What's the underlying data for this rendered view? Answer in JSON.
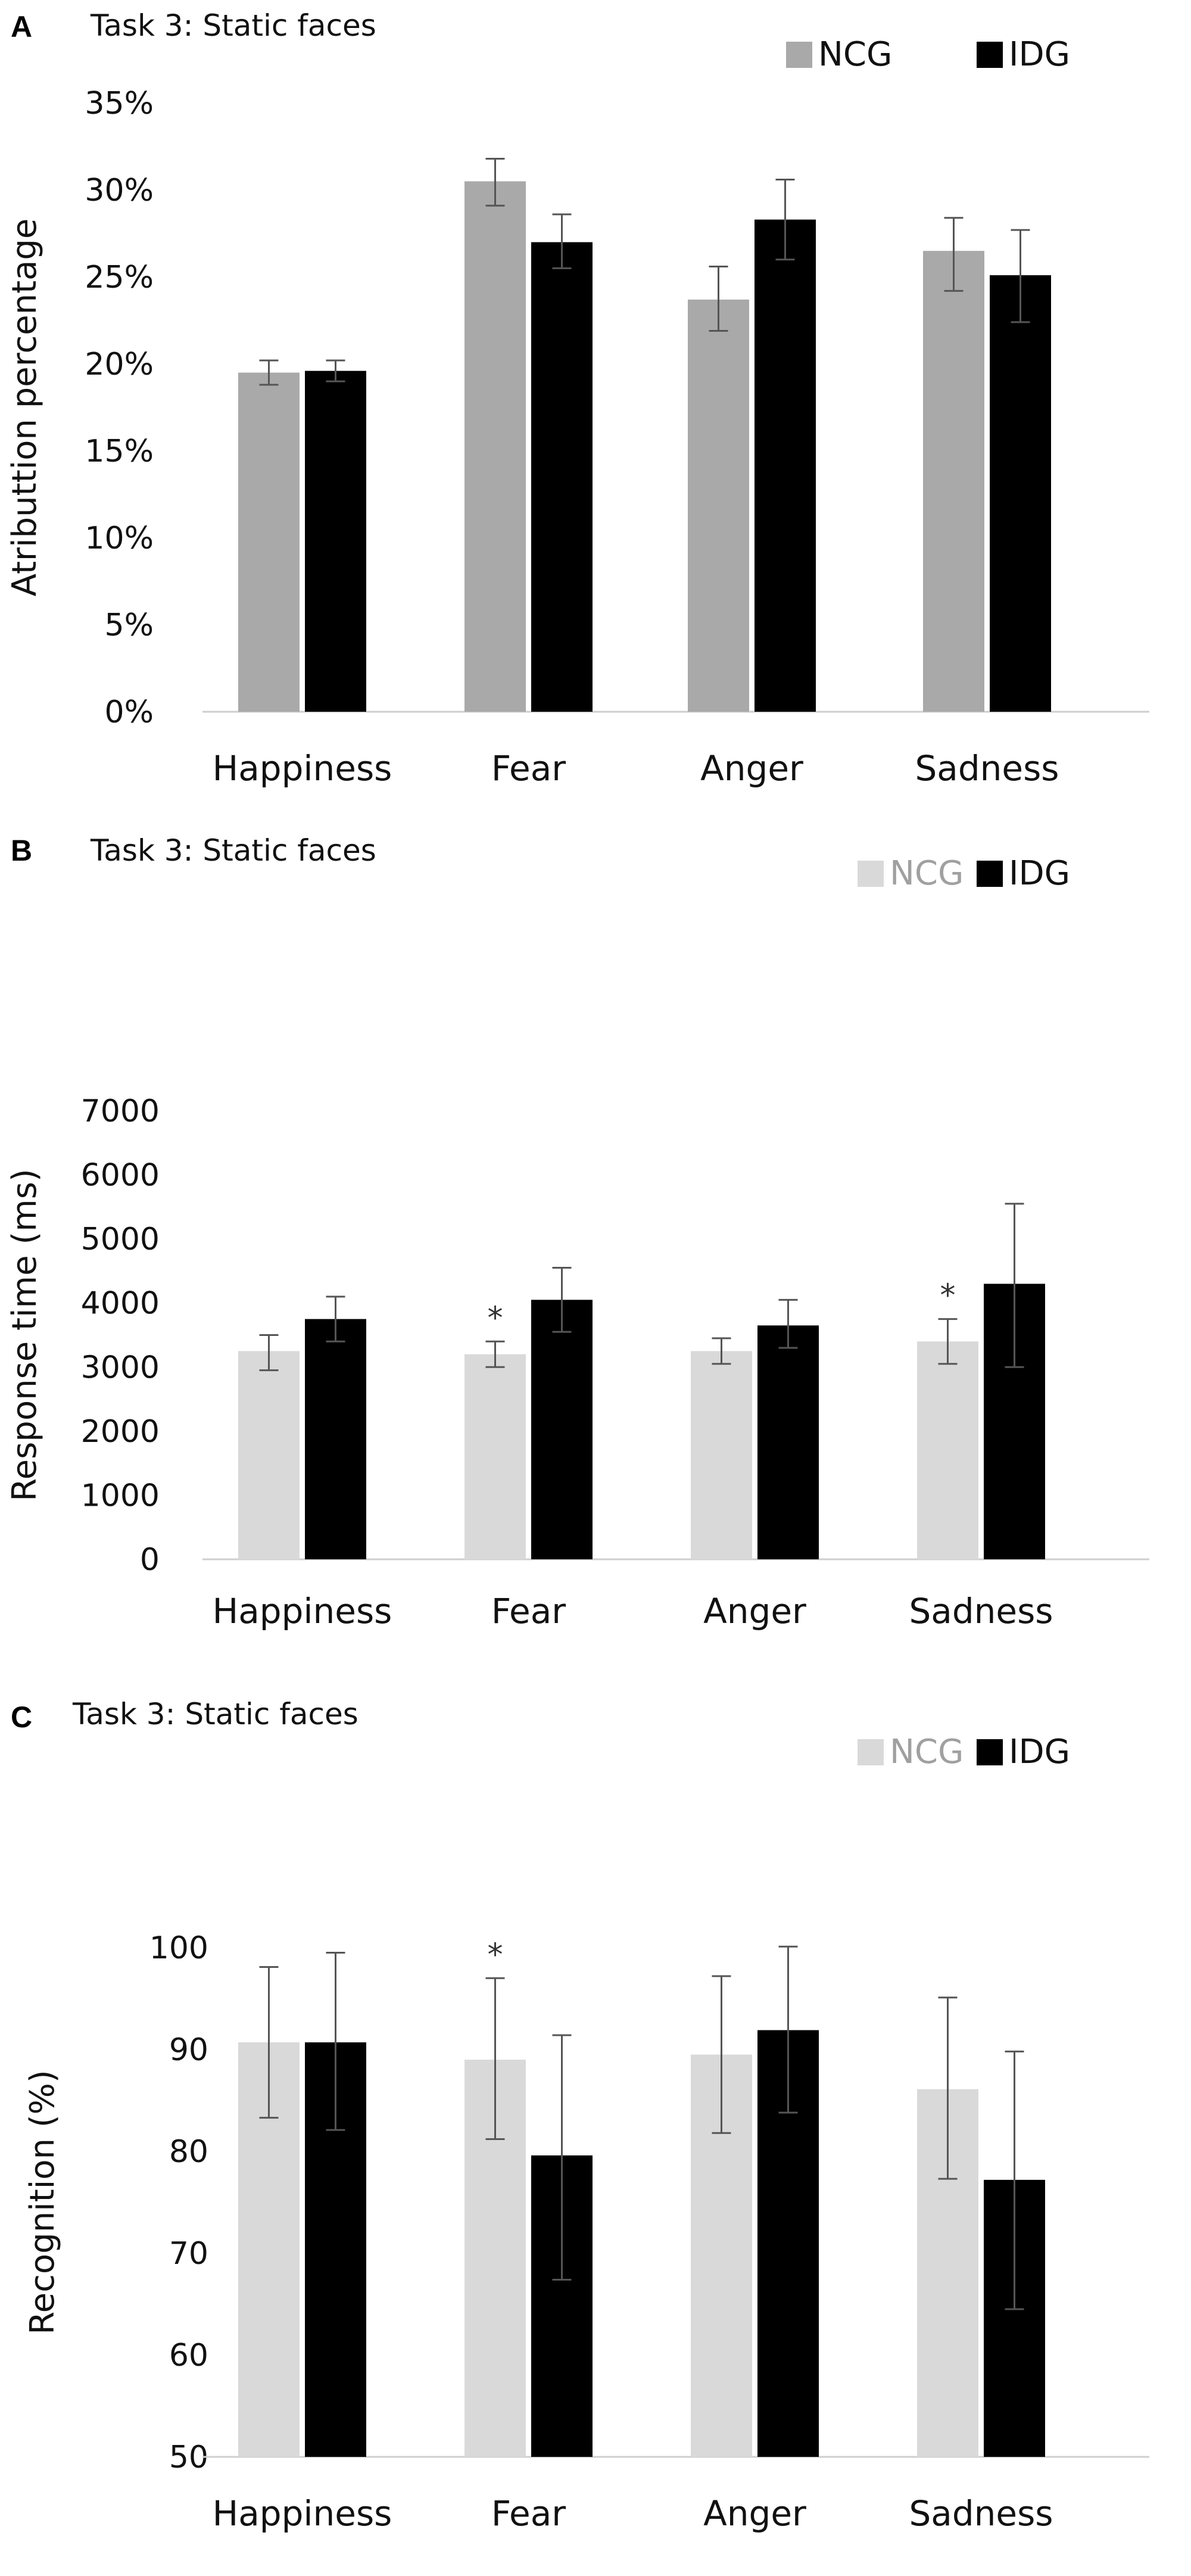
{
  "chart_data": [
    {
      "panel": "A",
      "type": "bar",
      "title": "Task 3: Static faces",
      "ylabel": "Atributtion percentage",
      "ylim": [
        0,
        35
      ],
      "yticks": [
        "0%",
        "5%",
        "10%",
        "15%",
        "20%",
        "25%",
        "30%",
        "35%"
      ],
      "categories": [
        "Happiness",
        "Fear",
        "Anger",
        "Sadness"
      ],
      "legend_position": "top-right",
      "grid": false,
      "series": [
        {
          "name": "NCG",
          "color": "#a9a9a9",
          "values": [
            19.5,
            30.5,
            23.7,
            26.5
          ],
          "err_low": [
            18.8,
            29.1,
            21.9,
            24.2
          ],
          "err_high": [
            20.2,
            31.8,
            25.6,
            28.4
          ]
        },
        {
          "name": "IDG",
          "color": "#000000",
          "values": [
            19.6,
            27.0,
            28.3,
            25.1
          ],
          "err_low": [
            19.0,
            25.5,
            26.0,
            22.4
          ],
          "err_high": [
            20.2,
            28.6,
            30.6,
            27.7
          ]
        }
      ],
      "significance": []
    },
    {
      "panel": "B",
      "type": "bar",
      "title": "Task 3: Static faces",
      "ylabel": "Response time (ms)",
      "ylim": [
        0,
        7000
      ],
      "yticks": [
        "0",
        "1000",
        "2000",
        "3000",
        "4000",
        "5000",
        "6000",
        "7000"
      ],
      "categories": [
        "Happiness",
        "Fear",
        "Anger",
        "Sadness"
      ],
      "legend_position": "top-right",
      "grid": false,
      "series": [
        {
          "name": "NCG",
          "color": "#d9d9d9",
          "values": [
            3250,
            3200,
            3250,
            3400
          ],
          "err_low": [
            2950,
            3000,
            3050,
            3050
          ],
          "err_high": [
            3500,
            3400,
            3450,
            3750
          ]
        },
        {
          "name": "IDG",
          "color": "#000000",
          "values": [
            3750,
            4050,
            3650,
            4300
          ],
          "err_low": [
            3400,
            3550,
            3300,
            3000
          ],
          "err_high": [
            4100,
            4550,
            4050,
            5550
          ]
        }
      ],
      "significance": [
        {
          "category": "Fear",
          "series": "NCG",
          "text": "*"
        },
        {
          "category": "Sadness",
          "series": "NCG",
          "text": "*"
        }
      ]
    },
    {
      "panel": "C",
      "type": "bar",
      "title": "Task 3: Static faces",
      "ylabel": "Recognition (%)",
      "ylim": [
        50,
        100
      ],
      "yticks": [
        "50",
        "60",
        "70",
        "80",
        "90",
        "100"
      ],
      "categories": [
        "Happiness",
        "Fear",
        "Anger",
        "Sadness"
      ],
      "legend_position": "top-right",
      "grid": false,
      "series": [
        {
          "name": "NCG",
          "color": "#d9d9d9",
          "values": [
            90.7,
            89.0,
            89.5,
            86.1
          ],
          "err_low": [
            83.3,
            81.2,
            81.8,
            77.3
          ],
          "err_high": [
            98.1,
            97.0,
            97.2,
            95.1
          ]
        },
        {
          "name": "IDG",
          "color": "#000000",
          "values": [
            90.7,
            79.6,
            91.9,
            77.2
          ],
          "err_low": [
            82.1,
            67.4,
            83.8,
            64.5
          ],
          "err_high": [
            99.5,
            91.4,
            100.1,
            89.8
          ]
        }
      ],
      "significance": [
        {
          "category": "Fear",
          "series": "NCG",
          "text": "*"
        }
      ]
    }
  ]
}
